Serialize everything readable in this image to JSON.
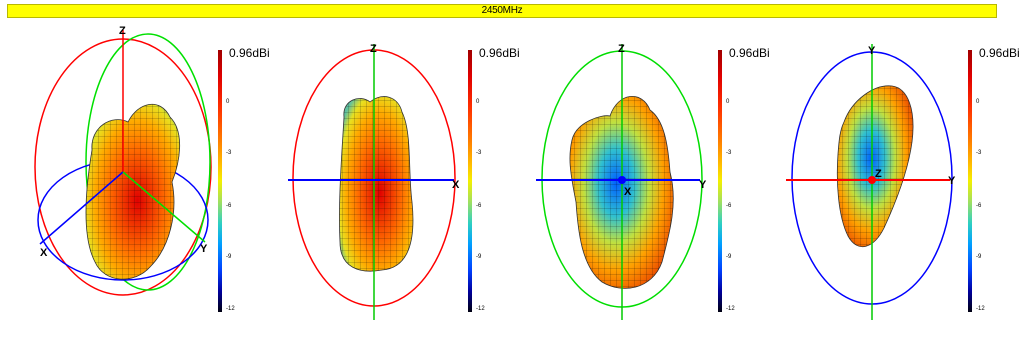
{
  "title": "2450MHz",
  "colorbar": {
    "max_label": "0.96dBi",
    "ticks": [
      "0",
      "-3",
      "-6",
      "-9",
      "-12"
    ]
  },
  "views": [
    {
      "name": "isometric",
      "axes": [
        "Z",
        "X",
        "Y"
      ]
    },
    {
      "name": "xz-plane",
      "axes": [
        "Z",
        "X"
      ]
    },
    {
      "name": "yz-plane",
      "axes": [
        "Z",
        "Y",
        "X"
      ]
    },
    {
      "name": "xy-plane",
      "axes": [
        "Y",
        "Y",
        "Z"
      ]
    }
  ],
  "colors": {
    "title_bar": "#ffff00",
    "axis_x": "#ff0000",
    "axis_y": "#00cc00",
    "axis_z": "#0000ff"
  }
}
